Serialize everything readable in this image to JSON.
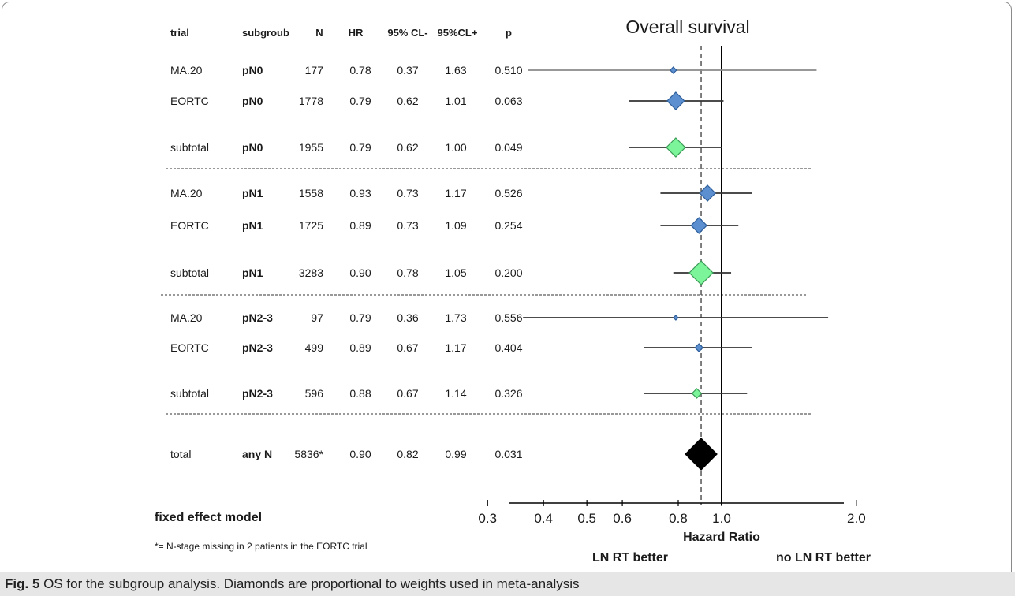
{
  "table": {
    "headers": [
      "trial",
      "subgroub",
      "N",
      "HR",
      "95% CL-",
      "95%CL+",
      "p"
    ],
    "rows": [
      {
        "trial": "MA.20",
        "subgroup": "pN0",
        "N": "177",
        "HR": "0.78",
        "cl_lo": "0.37",
        "cl_hi": "1.63",
        "p": "0.510",
        "kind": "trial",
        "size": 4
      },
      {
        "trial": "EORTC",
        "subgroup": "pN0",
        "N": "1778",
        "HR": "0.79",
        "cl_lo": "0.62",
        "cl_hi": "1.01",
        "p": "0.063",
        "kind": "trial",
        "size": 11
      },
      {
        "trial": "subtotal",
        "subgroup": "pN0",
        "N": "1955",
        "HR": "0.79",
        "cl_lo": "0.62",
        "cl_hi": "1.00",
        "p": "0.049",
        "kind": "subtotal",
        "size": 12
      },
      {
        "trial": "MA.20",
        "subgroup": "pN1",
        "N": "1558",
        "HR": "0.93",
        "cl_lo": "0.73",
        "cl_hi": "1.17",
        "p": "0.526",
        "kind": "trial",
        "size": 10
      },
      {
        "trial": "EORTC",
        "subgroup": "pN1",
        "N": "1725",
        "HR": "0.89",
        "cl_lo": "0.73",
        "cl_hi": "1.09",
        "p": "0.254",
        "kind": "trial",
        "size": 10
      },
      {
        "trial": "subtotal",
        "subgroup": "pN1",
        "N": "3283",
        "HR": "0.90",
        "cl_lo": "0.78",
        "cl_hi": "1.05",
        "p": "0.200",
        "kind": "subtotal",
        "size": 15
      },
      {
        "trial": "MA.20",
        "subgroup": "pN2-3",
        "N": "97",
        "HR": "0.79",
        "cl_lo": "0.36",
        "cl_hi": "1.73",
        "p": "0.556",
        "kind": "trial",
        "size": 3
      },
      {
        "trial": "EORTC",
        "subgroup": "pN2-3",
        "N": "499",
        "HR": "0.89",
        "cl_lo": "0.67",
        "cl_hi": "1.17",
        "p": "0.404",
        "kind": "trial",
        "size": 5
      },
      {
        "trial": "subtotal",
        "subgroup": "pN2-3",
        "N": "596",
        "HR": "0.88",
        "cl_lo": "0.67",
        "cl_hi": "1.14",
        "p": "0.326",
        "kind": "subtotal",
        "size": 6
      },
      {
        "trial": "total",
        "subgroup": "any N",
        "N": "5836*",
        "HR": "0.90",
        "cl_lo": "0.82",
        "cl_hi": "0.99",
        "p": "0.031",
        "kind": "total",
        "size": 20
      }
    ]
  },
  "model_label": "fixed effect model",
  "footnote": "*= N-stage missing in 2 patients in the EORTC trial",
  "caption": {
    "label": "Fig. 5",
    "text": " OS for the subgroup analysis. Diamonds are proportional to weights used in meta-analysis"
  },
  "colors": {
    "trial": "#5b8fd0",
    "subtotal": "#7cf59a",
    "total": "#000000",
    "ci_line": "#333333",
    "ci_line_light": "#8a8a8a"
  },
  "chart_data": {
    "type": "forest",
    "title": "Overall survival",
    "xlabel": "Hazard Ratio",
    "x_scale": "log",
    "xlim": [
      0.3,
      2.0
    ],
    "x_ticks": [
      0.3,
      0.4,
      0.5,
      0.6,
      0.8,
      1.0,
      2.0
    ],
    "x_tick_labels": [
      "0.3",
      "0.4",
      "0.5",
      "0.6",
      "0.8",
      "1.0",
      "2.0"
    ],
    "reference_line": 1.0,
    "pooled_line": 0.9,
    "left_annotation": "LN RT better",
    "right_annotation": "no LN RT better",
    "points": [
      {
        "label": "MA.20 pN0",
        "hr": 0.78,
        "lo": 0.37,
        "hi": 1.63
      },
      {
        "label": "EORTC pN0",
        "hr": 0.79,
        "lo": 0.62,
        "hi": 1.01
      },
      {
        "label": "subtotal pN0",
        "hr": 0.79,
        "lo": 0.62,
        "hi": 1.0
      },
      {
        "label": "MA.20 pN1",
        "hr": 0.93,
        "lo": 0.73,
        "hi": 1.17
      },
      {
        "label": "EORTC pN1",
        "hr": 0.89,
        "lo": 0.73,
        "hi": 1.09
      },
      {
        "label": "subtotal pN1",
        "hr": 0.9,
        "lo": 0.78,
        "hi": 1.05
      },
      {
        "label": "MA.20 pN2-3",
        "hr": 0.79,
        "lo": 0.36,
        "hi": 1.73
      },
      {
        "label": "EORTC pN2-3",
        "hr": 0.89,
        "lo": 0.67,
        "hi": 1.17
      },
      {
        "label": "subtotal pN2-3",
        "hr": 0.88,
        "lo": 0.67,
        "hi": 1.14
      },
      {
        "label": "total any N",
        "hr": 0.9,
        "lo": 0.82,
        "hi": 0.99
      }
    ]
  }
}
